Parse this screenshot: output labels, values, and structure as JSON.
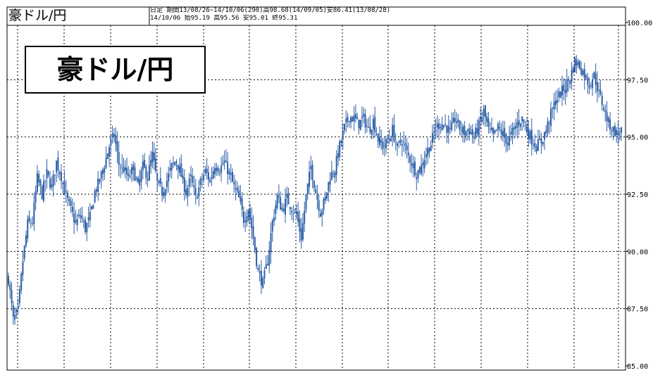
{
  "header": {
    "title": "豪ドル/円",
    "period_line": "日足  期間13/08/26~14/10/06(290)高98.68(14/09/05)安86.41(13/08/28)",
    "latest_line": "14/10/06        始95.19 高95.56 安95.01 終95.31"
  },
  "overlay_label": "豪ドル/円",
  "chart_data": {
    "type": "candlestick",
    "title": "豪ドル/円",
    "timeframe": "日足",
    "period": "13/08/26~14/10/06",
    "bars": 290,
    "high": {
      "value": 98.68,
      "date": "14/09/05"
    },
    "low": {
      "value": 86.41,
      "date": "13/08/28"
    },
    "latest": {
      "date": "14/10/06",
      "open": 95.19,
      "high": 95.56,
      "low": 95.01,
      "close": 95.31
    },
    "ylim": [
      85.0,
      100.0
    ],
    "y_ticks": [
      "100.00",
      "97.50",
      "95.00",
      "92.50",
      "90.00",
      "87.50",
      "85.00"
    ],
    "grid": true,
    "series_color": "#2b5ea8",
    "close_path": [
      [
        0,
        88.8
      ],
      [
        3,
        87.0
      ],
      [
        6,
        87.4
      ],
      [
        9,
        89.6
      ],
      [
        12,
        91.2
      ],
      [
        15,
        91.3
      ],
      [
        18,
        93.2
      ],
      [
        21,
        92.5
      ],
      [
        24,
        93.4
      ],
      [
        27,
        92.8
      ],
      [
        30,
        93.9
      ],
      [
        33,
        93.3
      ],
      [
        36,
        92.4
      ],
      [
        39,
        91.8
      ],
      [
        42,
        91.2
      ],
      [
        45,
        91.6
      ],
      [
        48,
        91.0
      ],
      [
        51,
        91.5
      ],
      [
        54,
        92.6
      ],
      [
        57,
        93.1
      ],
      [
        60,
        93.8
      ],
      [
        63,
        94.6
      ],
      [
        66,
        95.1
      ],
      [
        69,
        93.8
      ],
      [
        72,
        93.6
      ],
      [
        75,
        93.2
      ],
      [
        78,
        93.6
      ],
      [
        81,
        92.8
      ],
      [
        84,
        93.7
      ],
      [
        87,
        93.3
      ],
      [
        90,
        94.2
      ],
      [
        93,
        93.0
      ],
      [
        96,
        92.6
      ],
      [
        99,
        93.1
      ],
      [
        102,
        93.7
      ],
      [
        105,
        94.0
      ],
      [
        108,
        93.3
      ],
      [
        111,
        92.6
      ],
      [
        114,
        93.2
      ],
      [
        117,
        92.3
      ],
      [
        120,
        93.0
      ],
      [
        123,
        93.5
      ],
      [
        126,
        93.1
      ],
      [
        129,
        93.8
      ],
      [
        132,
        93.6
      ],
      [
        135,
        93.9
      ],
      [
        138,
        93.4
      ],
      [
        141,
        92.8
      ],
      [
        144,
        92.3
      ],
      [
        147,
        91.4
      ],
      [
        150,
        91.9
      ],
      [
        153,
        90.6
      ],
      [
        156,
        89.1
      ],
      [
        159,
        88.6
      ],
      [
        162,
        89.6
      ],
      [
        165,
        91.3
      ],
      [
        168,
        92.4
      ],
      [
        171,
        91.8
      ],
      [
        174,
        92.3
      ],
      [
        177,
        91.9
      ],
      [
        180,
        91.6
      ],
      [
        183,
        90.6
      ],
      [
        186,
        92.4
      ],
      [
        189,
        93.7
      ],
      [
        192,
        92.6
      ],
      [
        195,
        91.7
      ],
      [
        198,
        92.3
      ],
      [
        201,
        93.3
      ],
      [
        204,
        93.6
      ],
      [
        207,
        94.6
      ],
      [
        210,
        95.4
      ],
      [
        213,
        95.9
      ],
      [
        216,
        95.8
      ],
      [
        219,
        95.6
      ],
      [
        222,
        95.8
      ],
      [
        225,
        95.3
      ],
      [
        228,
        95.7
      ],
      [
        231,
        94.9
      ],
      [
        234,
        94.6
      ],
      [
        237,
        94.8
      ],
      [
        240,
        95.3
      ],
      [
        243,
        94.5
      ],
      [
        246,
        94.9
      ],
      [
        249,
        94.3
      ],
      [
        252,
        93.9
      ],
      [
        255,
        93.4
      ],
      [
        258,
        93.7
      ],
      [
        261,
        94.3
      ],
      [
        264,
        94.7
      ],
      [
        267,
        95.4
      ],
      [
        270,
        95.6
      ],
      [
        273,
        95.5
      ],
      [
        276,
        95.2
      ],
      [
        279,
        95.8
      ],
      [
        282,
        95.4
      ],
      [
        285,
        95.2
      ],
      [
        288,
        95.3
      ],
      [
        291,
        95.0
      ],
      [
        294,
        95.5
      ],
      [
        297,
        96.1
      ],
      [
        300,
        95.3
      ],
      [
        303,
        95.0
      ],
      [
        306,
        95.4
      ],
      [
        309,
        95.1
      ],
      [
        312,
        94.8
      ],
      [
        315,
        95.2
      ],
      [
        318,
        95.6
      ],
      [
        321,
        95.8
      ],
      [
        324,
        95.3
      ],
      [
        327,
        94.9
      ],
      [
        330,
        94.6
      ],
      [
        333,
        94.8
      ],
      [
        336,
        95.3
      ],
      [
        339,
        96.0
      ],
      [
        342,
        96.6
      ],
      [
        345,
        96.9
      ],
      [
        348,
        97.2
      ],
      [
        351,
        97.6
      ],
      [
        354,
        98.3
      ],
      [
        357,
        98.1
      ],
      [
        360,
        97.7
      ],
      [
        363,
        97.3
      ],
      [
        366,
        97.7
      ],
      [
        369,
        96.9
      ],
      [
        372,
        96.3
      ],
      [
        375,
        95.6
      ],
      [
        378,
        95.3
      ],
      [
        381,
        95.1
      ],
      [
        383,
        95.31
      ]
    ]
  }
}
